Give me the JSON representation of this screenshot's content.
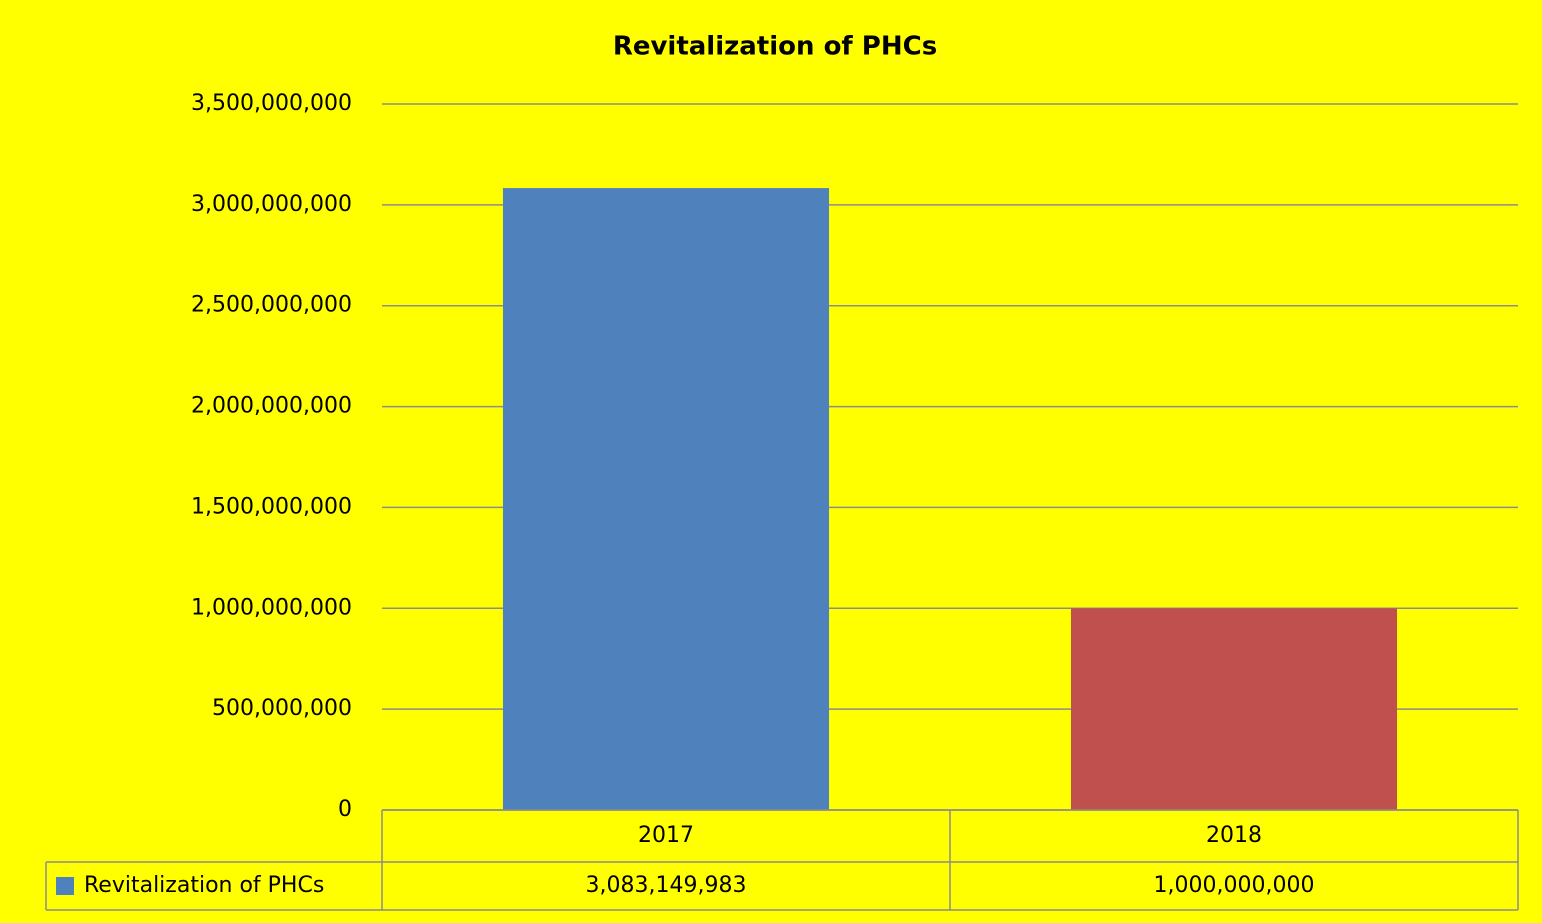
{
  "chart_data": {
    "type": "bar",
    "title": "Revitalization of PHCs",
    "categories": [
      "2017",
      "2018"
    ],
    "series": [
      {
        "name": "Revitalization of PHCs",
        "color": "#4f81bd",
        "point_colors": [
          "#4f81bd",
          "#c0504d"
        ],
        "values": [
          3083149983,
          1000000000
        ],
        "value_labels": [
          "3,083,149,983",
          "1,000,000,000"
        ]
      }
    ],
    "ylim": [
      0,
      3500000000
    ],
    "yticks": [
      0,
      {
        "value": 500000000,
        "label": "500,000,000"
      },
      {
        "value": 1000000000,
        "label": "1,000,000,000"
      },
      {
        "value": 1500000000,
        "label": "1,500,000,000"
      },
      {
        "value": 2000000000,
        "label": "2,000,000,000"
      },
      {
        "value": 2500000000,
        "label": "2,500,000,000"
      },
      {
        "value": 3000000000,
        "label": "3,000,000,000"
      },
      {
        "value": 3500000000,
        "label": "3,500,000,000"
      }
    ],
    "grid": true,
    "data_table": true
  }
}
